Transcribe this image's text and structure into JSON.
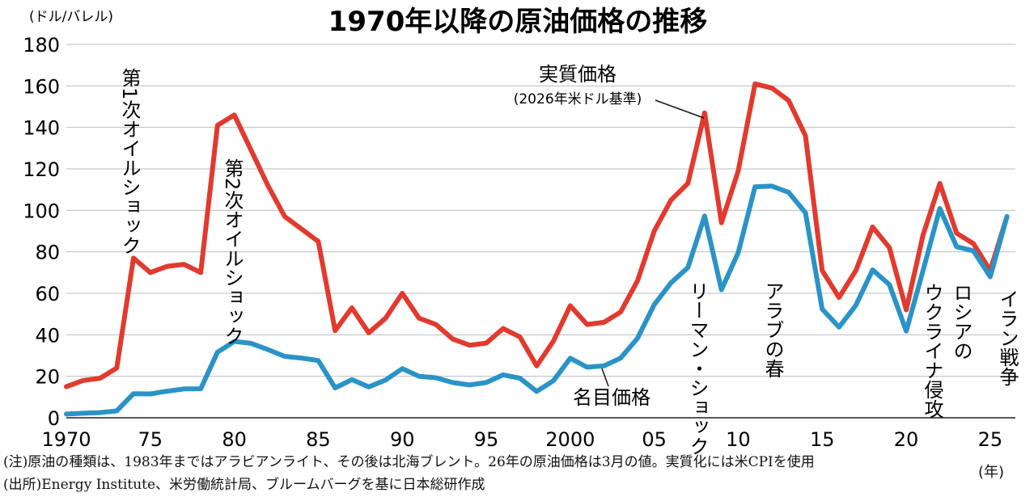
{
  "chart_data": {
    "type": "line",
    "title": "1970年以降の原油価格の推移",
    "ylabel": "(ドル/バレル)",
    "xlabel_unit": "(年)",
    "ylim": [
      0,
      180
    ],
    "yticks": [
      0,
      20,
      40,
      60,
      80,
      100,
      120,
      140,
      160,
      180
    ],
    "xlim": [
      1970,
      2026.5
    ],
    "xticks": [
      {
        "value": 1970,
        "label": "1970"
      },
      {
        "value": 1975,
        "label": "75"
      },
      {
        "value": 1980,
        "label": "80"
      },
      {
        "value": 1985,
        "label": "85"
      },
      {
        "value": 1990,
        "label": "90"
      },
      {
        "value": 1995,
        "label": "95"
      },
      {
        "value": 2000,
        "label": "2000"
      },
      {
        "value": 2005,
        "label": "05"
      },
      {
        "value": 2010,
        "label": "10"
      },
      {
        "value": 2015,
        "label": "15"
      },
      {
        "value": 2020,
        "label": "20"
      },
      {
        "value": 2025,
        "label": "25"
      }
    ],
    "series": [
      {
        "name": "実質価格",
        "note": "(2026年米ドル基準)",
        "color": "#e23a2e",
        "x": [
          1970,
          1971,
          1972,
          1973,
          1974,
          1975,
          1976,
          1977,
          1978,
          1979,
          1980,
          1981,
          1982,
          1983,
          1984,
          1985,
          1986,
          1987,
          1988,
          1989,
          1990,
          1991,
          1992,
          1993,
          1994,
          1995,
          1996,
          1997,
          1998,
          1999,
          2000,
          2001,
          2002,
          2003,
          2004,
          2005,
          2006,
          2007,
          2008,
          2009,
          2010,
          2011,
          2012,
          2013,
          2014,
          2015,
          2016,
          2017,
          2018,
          2019,
          2020,
          2021,
          2022,
          2023,
          2024,
          2025,
          2026
        ],
        "values": [
          15,
          18,
          19,
          24,
          77,
          70,
          73,
          74,
          70,
          141,
          146,
          129,
          112,
          97,
          91,
          85,
          42,
          53,
          41,
          48,
          60,
          48,
          45,
          38,
          35,
          36,
          43,
          39,
          25,
          37,
          54,
          45,
          46,
          51,
          66,
          90,
          105,
          113,
          147,
          94,
          119,
          161,
          159,
          153,
          136,
          71,
          58,
          71,
          92,
          82,
          52,
          88,
          113,
          89,
          84,
          71,
          97
        ]
      },
      {
        "name": "名目価格",
        "color": "#2a93c8",
        "x": [
          1970,
          1971,
          1972,
          1973,
          1974,
          1975,
          1976,
          1977,
          1978,
          1979,
          1980,
          1981,
          1982,
          1983,
          1984,
          1985,
          1986,
          1987,
          1988,
          1989,
          1990,
          1991,
          1992,
          1993,
          1994,
          1995,
          1996,
          1997,
          1998,
          1999,
          2000,
          2001,
          2002,
          2003,
          2004,
          2005,
          2006,
          2007,
          2008,
          2009,
          2010,
          2011,
          2012,
          2013,
          2014,
          2015,
          2016,
          2017,
          2018,
          2019,
          2020,
          2021,
          2022,
          2023,
          2024,
          2025,
          2026
        ],
        "values": [
          1.8,
          2.2,
          2.5,
          3.3,
          11.6,
          11.5,
          12.8,
          13.9,
          14.0,
          31.6,
          36.8,
          35.9,
          32.9,
          29.6,
          28.8,
          27.6,
          14.4,
          18.4,
          14.9,
          18.2,
          23.7,
          20.0,
          19.3,
          17.0,
          15.8,
          17.0,
          20.7,
          19.1,
          12.7,
          17.9,
          28.7,
          24.4,
          25.0,
          28.8,
          38.3,
          54.5,
          65.1,
          72.4,
          97.3,
          61.7,
          79.6,
          111.3,
          111.7,
          108.7,
          98.9,
          52.4,
          43.7,
          54.2,
          71.3,
          64.2,
          41.8,
          70.9,
          100.9,
          82.5,
          80.5,
          68.0,
          97.0
        ]
      }
    ],
    "annotations": [
      {
        "text": "第1次オイルショック",
        "x": 1974
      },
      {
        "text": "第2次オイルショック",
        "x": 1980
      },
      {
        "text": "リーマン・ショック",
        "x": 2008
      },
      {
        "text": "アラブの春",
        "x": 2011
      },
      {
        "text": "ロシアのウクライナ侵攻",
        "x": 2022
      },
      {
        "text": "イラン戦争",
        "x": 2026
      }
    ]
  },
  "notes": {
    "line1": "(注)原油の種類は、1983年まではアラビアンライト、その後は北海ブレント。26年の原油価格は3月の値。実質化には米CPIを使用",
    "line2": "(出所)Energy Institute、米労働統計局、ブルームバーグを基に日本総研作成"
  }
}
